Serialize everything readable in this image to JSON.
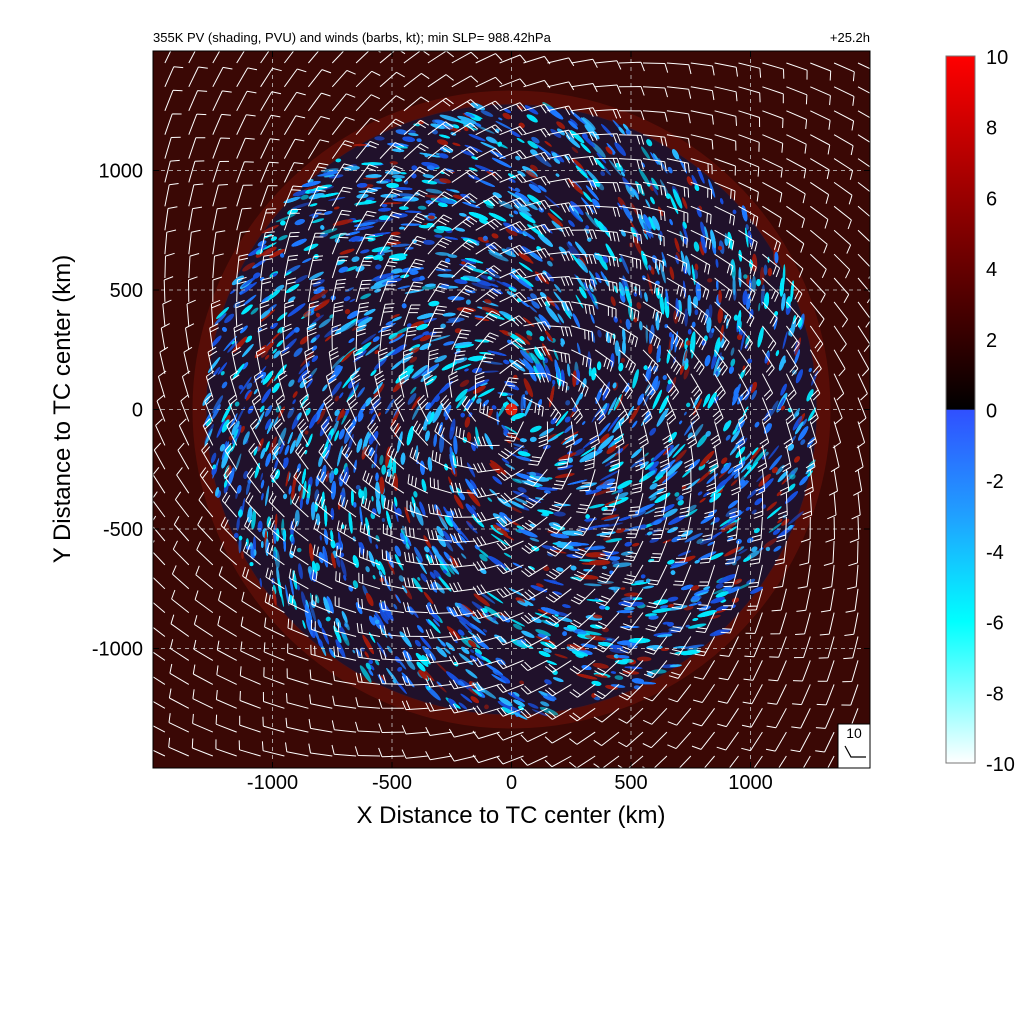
{
  "title_left": "355K PV (shading, PVU) and winds (barbs, kt); min SLP= 988.42hPa",
  "title_right": "+25.2h",
  "colors": {
    "background_red": "#4a0a06",
    "core_red": "#e0200c",
    "blue_mid": "#1e78ff",
    "blue_light": "#2ab8ff",
    "cyan": "#00e8ff",
    "grid": "#c8c8c8",
    "barb": "#ffffff"
  },
  "chart_data": {
    "type": "heatmap",
    "xlabel": "X Distance to TC center (km)",
    "ylabel": "Y Distance to TC center (km)",
    "xlim": [
      -1500,
      1500
    ],
    "ylim": [
      -1500,
      1500
    ],
    "xticks": [
      -1000,
      -500,
      0,
      500,
      1000
    ],
    "yticks": [
      -1000,
      -500,
      0,
      500,
      1000
    ],
    "xtick_labels": [
      "-1000",
      "-500",
      "0",
      "500",
      "1000"
    ],
    "ytick_labels": [
      "1000",
      "500",
      "0",
      "-500",
      "-1000"
    ],
    "grid": true,
    "colorbar": {
      "min": -10,
      "max": 10,
      "ticks": [
        10,
        8,
        6,
        4,
        2,
        0,
        -2,
        -4,
        -6,
        -8,
        -10
      ],
      "tick_labels": [
        "10",
        "8",
        "6",
        "4",
        "2",
        "0",
        "-2",
        "-4",
        "-6",
        "-8",
        "-10"
      ],
      "stops": [
        {
          "value": 10,
          "color": "#ff0000"
        },
        {
          "value": 6,
          "color": "#990000"
        },
        {
          "value": 2,
          "color": "#330000"
        },
        {
          "value": 0,
          "color": "#000000"
        },
        {
          "value": -0.01,
          "color": "#3050ff"
        },
        {
          "value": -3,
          "color": "#20a0ff"
        },
        {
          "value": -6,
          "color": "#00ffff"
        },
        {
          "value": -10,
          "color": "#ffffff"
        }
      ]
    },
    "barb_legend_label": "10",
    "wind_field": {
      "units": "kt",
      "barb_spacing_km": 100,
      "circulation": "cyclonic",
      "inflow": "radial inward near surface-like spiral"
    }
  }
}
